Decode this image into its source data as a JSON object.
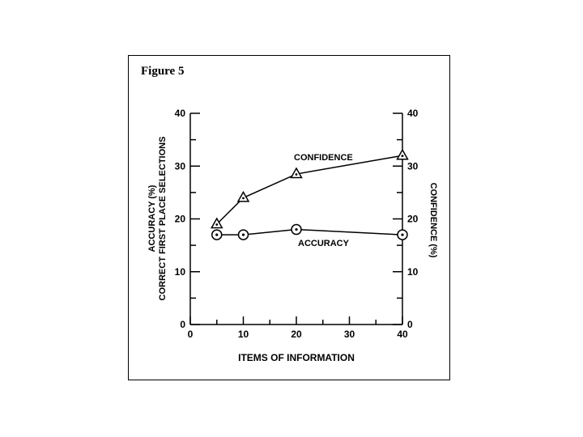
{
  "figure_label": "Figure 5",
  "chart_data": {
    "type": "line",
    "x_label": "ITEMS OF INFORMATION",
    "y_left_label_line1": "ACCURACY (%)",
    "y_left_label_line2": "CORRECT FIRST PLACE SELECTIONS",
    "y_right_label": "CONFIDENCE (%)",
    "x_ticks": [
      "0",
      "10",
      "20",
      "30",
      "40"
    ],
    "y_ticks": [
      "0",
      "10",
      "20",
      "30",
      "40"
    ],
    "xlim": [
      0,
      40
    ],
    "ylim": [
      0,
      40
    ],
    "series": [
      {
        "name": "CONFIDENCE",
        "marker": "triangle",
        "x": [
          5,
          10,
          20,
          40
        ],
        "y": [
          19,
          24,
          28.5,
          32
        ]
      },
      {
        "name": "ACCURACY",
        "marker": "circle",
        "x": [
          5,
          10,
          20,
          40
        ],
        "y": [
          17,
          17,
          18,
          17
        ]
      }
    ]
  }
}
